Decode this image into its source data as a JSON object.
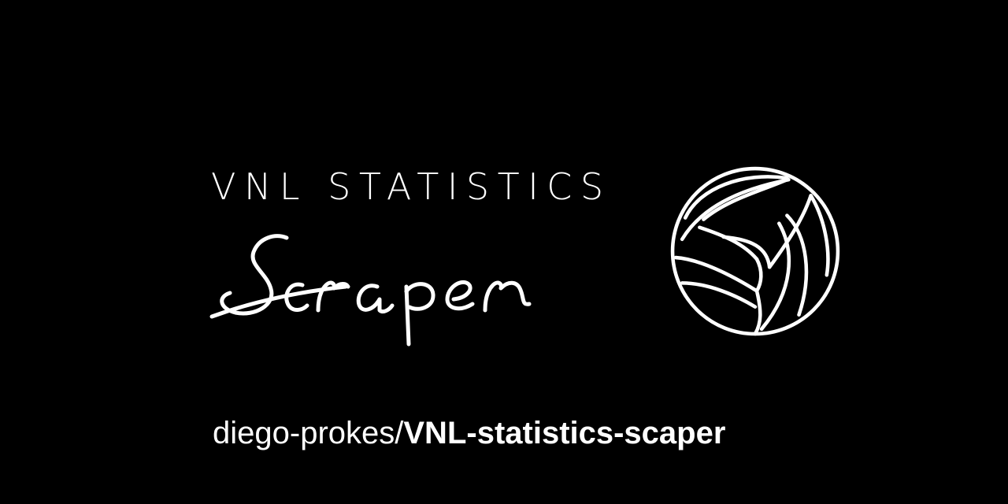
{
  "banner": {
    "title_top": "VNL STATISTICS",
    "title_script": "Scraper",
    "repo_owner": "diego-prokes/",
    "repo_name": "VNL-statistics-scaper",
    "ball_icon": "volleyball-icon"
  },
  "colors": {
    "background": "#000000",
    "foreground": "#ffffff"
  }
}
